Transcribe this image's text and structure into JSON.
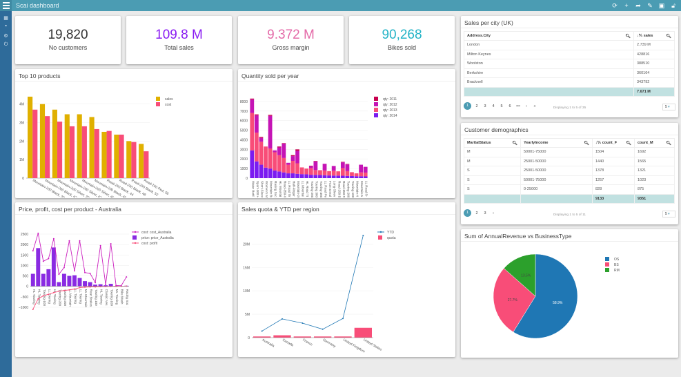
{
  "app": {
    "title": "Scai dashboard",
    "toolbar_icons": [
      "refresh-icon",
      "plus-icon",
      "share-icon",
      "edit-icon",
      "save-icon",
      "lock-icon"
    ],
    "sidebar_icons": [
      "grid-icon",
      "dashboard-icon",
      "settings-icon",
      "power-icon"
    ]
  },
  "kpis": [
    {
      "value": "19,820",
      "label": "No customers",
      "color": "#333333"
    },
    {
      "value": "109.8 M",
      "label": "Total sales",
      "color": "#8a1cf2"
    },
    {
      "value": "9.372 M",
      "label": "Gross margin",
      "color": "#e46aa8"
    },
    {
      "value": "90,268",
      "label": "Bikes sold",
      "color": "#22b3c6"
    }
  ],
  "city_table": {
    "title": "Sales per city (UK)",
    "columns": [
      "Address.City",
      "sales"
    ],
    "sort_glyph": "↓⅟₁",
    "rows": [
      [
        "London",
        "2.739 M"
      ],
      [
        "Milton Keynes",
        "428816"
      ],
      [
        "Woolston",
        "388510"
      ],
      [
        "Berkshire",
        "360164"
      ],
      [
        "Bracknell",
        "343792"
      ]
    ],
    "total": [
      "",
      "7.671 M"
    ],
    "pages": [
      "1",
      "2",
      "3",
      "4",
      "5",
      "6",
      "•••",
      "›",
      "»"
    ],
    "display": "Displaying 1 to 5 of 35",
    "page_size": "5"
  },
  "demo_table": {
    "title": "Customer demographics",
    "columns": [
      "MaritalStatus",
      "YearlyIncome",
      "count_F",
      "count_M"
    ],
    "sort_glyph": "↓⅟₁",
    "rows": [
      [
        "M",
        "50001-75000",
        "1504",
        "1692"
      ],
      [
        "M",
        "25001-50000",
        "1440",
        "1565"
      ],
      [
        "S",
        "25001-50000",
        "1378",
        "1321"
      ],
      [
        "S",
        "50001-75000",
        "1257",
        "1023"
      ],
      [
        "S",
        "0-25000",
        "828",
        "875"
      ]
    ],
    "total": [
      "",
      "",
      "9133",
      "9351"
    ],
    "pages": [
      "1",
      "2",
      "3",
      "›"
    ],
    "display": "Displaying 1 to 5 of 11",
    "page_size": "5"
  },
  "chart_data": [
    {
      "id": "top10",
      "type": "bar",
      "title": "Top 10 products",
      "categories": [
        "Mountain-200 Black, 38",
        "Mountain-200 Black, 42",
        "Mountain-200 Silver, 38",
        "Mountain-200 Silver, 42",
        "Mountain-200 Silver, 46",
        "Mountain-200 Black, 46",
        "Road-250 Black, 44",
        "Road-250 Black, 48",
        "Road-250 Black, 52",
        "Road-150 Red, 56"
      ],
      "series": [
        {
          "name": "sales",
          "color": "#e0b000",
          "values": [
            4.4,
            4.0,
            3.7,
            3.45,
            3.45,
            3.3,
            2.5,
            2.35,
            2.0,
            1.85
          ]
        },
        {
          "name": "cost",
          "color": "#f84d78",
          "values": [
            3.7,
            3.35,
            3.05,
            2.8,
            2.8,
            2.65,
            2.55,
            2.35,
            1.95,
            1.45
          ]
        }
      ],
      "ylim": [
        0,
        4.4
      ],
      "yticks": [
        0,
        1,
        2,
        3,
        4
      ],
      "ytick_labels": [
        "0",
        "1M",
        "2M",
        "3M",
        "4M"
      ],
      "legend": "top-right",
      "grid": true
    },
    {
      "id": "qty",
      "type": "bar",
      "stacked": true,
      "title": "Quantity sold per year",
      "categories": [
        "Water Bottl",
        "Sport-100 H",
        "Short-Sleev",
        "Women's M",
        "Mountain Bo",
        "Racing Soc",
        "HL Mountai",
        "Road-350-W",
        "LL Road Tir",
        "Half-Finger",
        "Mountain-20",
        "LL Mountai",
        "HL Road Ti",
        "Touring-200",
        "Touring 300",
        "Touring-300",
        "LL Road Pe",
        "Front Deral",
        "Long-Sleev",
        "Road-250 B",
        "Road-650 R",
        "Touring-200",
        "Touring-100",
        "Mountain-4",
        "Mountain-5",
        "LL Road Fr"
      ],
      "series": [
        {
          "name": "qty: 2014",
          "color": "#7b1cf0",
          "values": [
            2900,
            1750,
            1400,
            1100,
            1000,
            800,
            700,
            600,
            500,
            500,
            450,
            420,
            400,
            350,
            340,
            330,
            300,
            280,
            270,
            260,
            250,
            230,
            220,
            200,
            200,
            180
          ]
        },
        {
          "name": "qty: 2013",
          "color": "#f84d78",
          "values": [
            3900,
            3000,
            2400,
            2200,
            2100,
            1900,
            1700,
            1500,
            900,
            1300,
            1100,
            700,
            600,
            700,
            500,
            500,
            500,
            450,
            500,
            450,
            800,
            500,
            400,
            300,
            400,
            400
          ]
        },
        {
          "name": "qty: 2012",
          "color": "#c514b5",
          "values": [
            1400,
            1800,
            400,
            0,
            3400,
            200,
            800,
            1500,
            200,
            500,
            1300,
            0,
            0,
            200,
            900,
            0,
            700,
            0,
            500,
            0,
            600,
            700,
            0,
            0,
            800,
            600
          ]
        },
        {
          "name": "qty: 2011",
          "color": "#c8004e",
          "values": [
            100,
            100,
            100,
            0,
            100,
            0,
            100,
            50,
            0,
            100,
            150,
            0,
            0,
            50,
            50,
            0,
            0,
            0,
            0,
            0,
            50,
            50,
            0,
            0,
            0,
            0
          ]
        }
      ],
      "ylim": [
        0,
        8500
      ],
      "yticks": [
        0,
        1000,
        2000,
        3000,
        4000,
        5000,
        6000,
        7000,
        8000
      ],
      "ytick_labels": [
        "0",
        "1000",
        "2000",
        "3000",
        "4000",
        "5000",
        "6000",
        "7000",
        "8000"
      ],
      "legend": "top-right",
      "grid": true
    },
    {
      "id": "price",
      "type": "line",
      "title": "Price, profit, cost per product - Australia",
      "categories": [
        "HL Touring",
        "HL Touring",
        "Touring-100",
        "LL Touring",
        "HL Touring",
        "Touring-200",
        "Touring-200",
        "LL Mountain",
        "LL Touring",
        "LL Touring",
        "ML Mountain",
        "Rear Brakes",
        "Touring 100",
        "HL Touring",
        "Classic Ves",
        "Touring-100",
        "ML Touring",
        "Bike Wash",
        "Racing Soc"
      ],
      "series": [
        {
          "name": "cost: cost_Australia",
          "kind": "line",
          "color": "#cc1fbf",
          "values": [
            1700,
            2540,
            1200,
            1330,
            2280,
            580,
            900,
            2180,
            740,
            2180,
            660,
            620,
            180,
            1950,
            80,
            2040,
            40,
            30,
            450
          ]
        },
        {
          "name": "price: price_Australia",
          "kind": "bar",
          "color": "#8a2be2",
          "values": [
            600,
            1830,
            600,
            820,
            1860,
            200,
            600,
            500,
            530,
            400,
            250,
            200,
            80,
            100,
            50,
            120,
            20,
            10,
            30
          ]
        },
        {
          "name": "cost: profit",
          "kind": "line",
          "color": "#f84d78",
          "values": [
            -1100,
            -600,
            -450,
            -380,
            -300,
            -230,
            -200,
            -170,
            -130,
            -60,
            -40,
            -30,
            -25,
            -15,
            -10,
            -5,
            -2,
            0,
            10
          ]
        }
      ],
      "ylim": [
        -1200,
        2700
      ],
      "yticks": [
        -1000,
        -500,
        0,
        500,
        1000,
        1500,
        2000,
        2500
      ],
      "ytick_labels": [
        "−1000",
        "−500",
        "0",
        "500",
        "1000",
        "1500",
        "2000",
        "2500"
      ],
      "legend": "top-right",
      "grid": true
    },
    {
      "id": "quota",
      "type": "bar+line",
      "title": "Sales quota & YTD per region",
      "categories": [
        "Australia",
        "Canada",
        "France",
        "Germany",
        "United Kingdom",
        "United States"
      ],
      "series": [
        {
          "name": "YTD",
          "kind": "line",
          "color": "#1f77b4",
          "values": [
            1.4,
            4.0,
            3.1,
            1.8,
            4.1,
            21.8
          ]
        },
        {
          "name": "quota",
          "kind": "bar",
          "color": "#f84d78",
          "values": [
            0.25,
            0.5,
            0.25,
            0.25,
            0.25,
            2.1
          ]
        }
      ],
      "ylim": [
        0,
        23
      ],
      "yticks": [
        0,
        5,
        10,
        15,
        20
      ],
      "ytick_labels": [
        "0",
        "5M",
        "10M",
        "15M",
        "20M"
      ],
      "legend": "top-right",
      "grid": true
    },
    {
      "id": "pie",
      "type": "pie",
      "title": "Sum of AnnualRevenue vs BusinessType",
      "categories": [
        "OS",
        "BS",
        "RM"
      ],
      "values": [
        58.9,
        27.7,
        13.5
      ],
      "labels": [
        "58.9%",
        "27.7%",
        "13.5%"
      ],
      "colors": [
        "#1f77b4",
        "#f84d78",
        "#2ca02c"
      ],
      "legend": "top-right"
    }
  ]
}
